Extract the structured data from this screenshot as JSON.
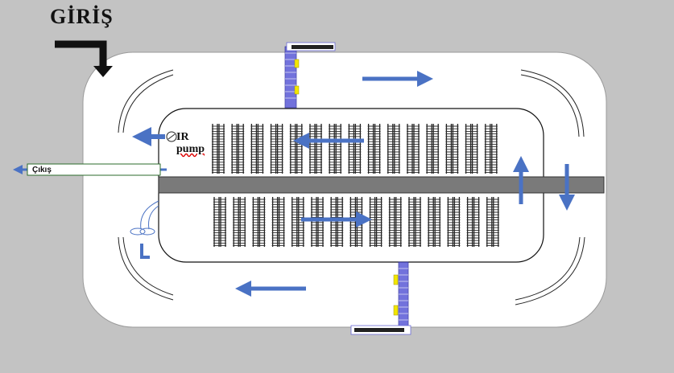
{
  "labels": {
    "entrance": "GİRİŞ",
    "pump_line1": "IR",
    "pump_line2": "pump",
    "exit": "Çıkış"
  },
  "colors": {
    "background": "#c3c3c3",
    "track": "#ffffff",
    "shaft": "#7a7a7a",
    "flow_arrow": "#4a72c4",
    "rack": "#1e1e1e",
    "conveyor": "#5a5ad6",
    "sensor": "#f2e600"
  },
  "rack_rows": {
    "top_count": 15,
    "bottom_count": 15
  },
  "icons": {
    "entrance_arrow": "elbow-down-arrow-icon",
    "pump": "pump-icon",
    "exit_arrow": "left-arrow-icon",
    "flow": "flow-arrow-icon"
  }
}
